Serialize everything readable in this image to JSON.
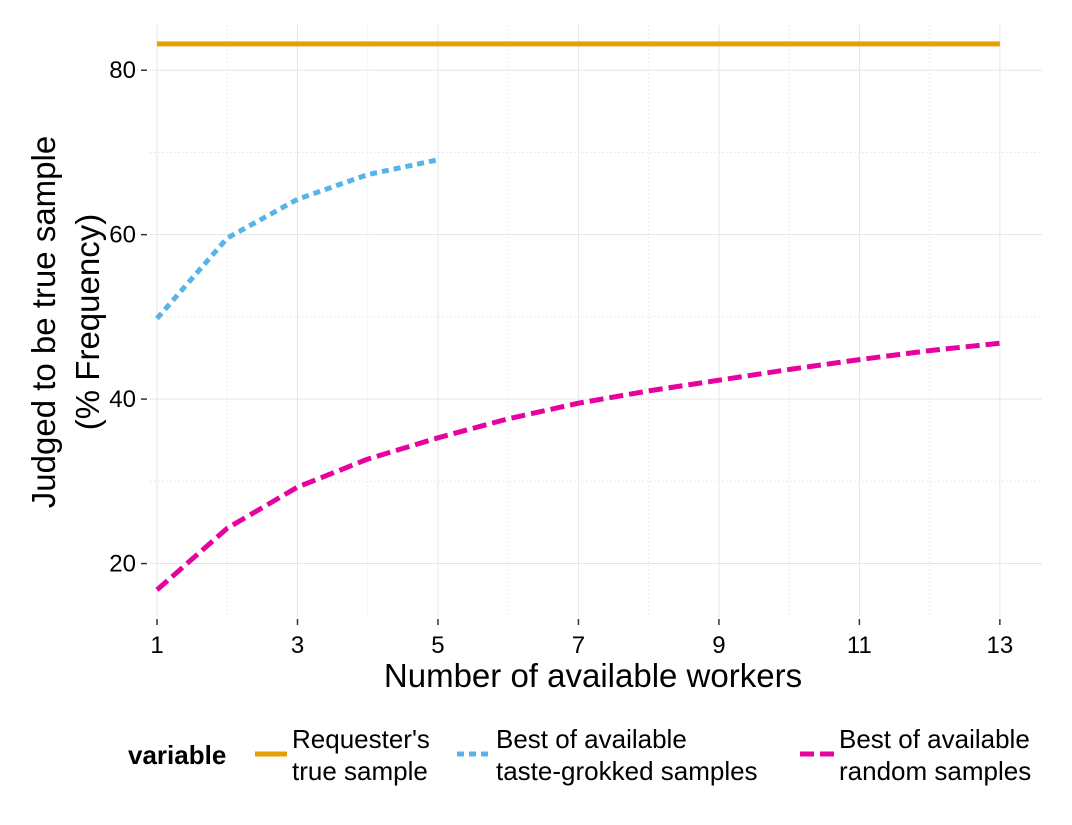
{
  "chart_data": {
    "type": "line",
    "xlabel": "Number of available workers",
    "ylabel_lines": [
      "Judged to be true sample",
      "(% Frequency)"
    ],
    "xlim": [
      0.9,
      13.6
    ],
    "ylim": [
      13.5,
      85.5
    ],
    "x_ticks": [
      1,
      3,
      5,
      7,
      9,
      11,
      13
    ],
    "y_ticks": [
      20,
      40,
      60,
      80
    ],
    "grid": true,
    "legend": {
      "position": "bottom",
      "title": "variable"
    },
    "series": [
      {
        "name_lines": [
          "Requester's",
          "true sample"
        ],
        "color": "#E69F00",
        "dash": "solid",
        "points": [
          [
            1,
            83.2
          ],
          [
            13,
            83.2
          ]
        ]
      },
      {
        "name_lines": [
          "Best of available",
          "taste-grokked samples"
        ],
        "color": "#56B4E9",
        "dash": "dotted",
        "points": [
          [
            1,
            49.8
          ],
          [
            2,
            59.6
          ],
          [
            3,
            64.3
          ],
          [
            4,
            67.3
          ],
          [
            5,
            69.1
          ]
        ]
      },
      {
        "name_lines": [
          "Best of available",
          "random samples"
        ],
        "color": "#E7019E",
        "dash": "dashed",
        "points": [
          [
            1,
            16.8
          ],
          [
            2,
            24.3
          ],
          [
            3,
            29.3
          ],
          [
            4,
            32.7
          ],
          [
            5,
            35.3
          ],
          [
            6,
            37.6
          ],
          [
            7,
            39.5
          ],
          [
            8,
            41.0
          ],
          [
            9,
            42.3
          ],
          [
            10,
            43.6
          ],
          [
            11,
            44.8
          ],
          [
            12,
            45.9
          ],
          [
            13,
            46.8
          ]
        ]
      }
    ]
  }
}
